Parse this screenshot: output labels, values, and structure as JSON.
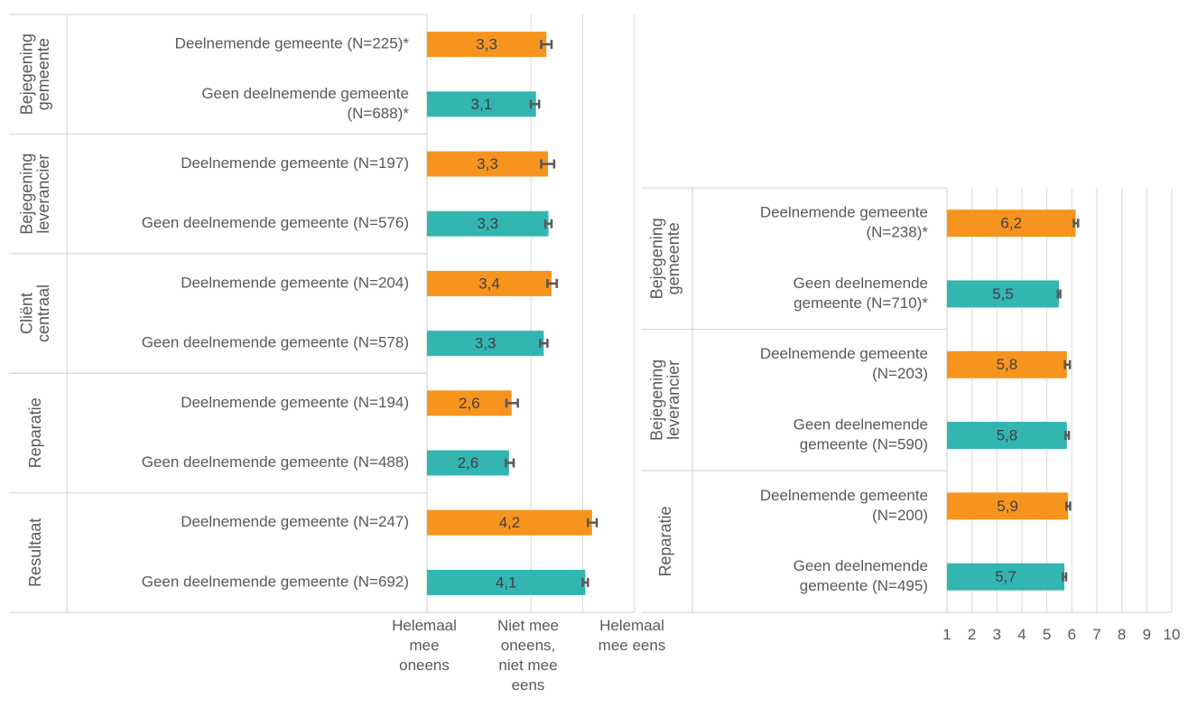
{
  "colors": {
    "participating": "#F7941D",
    "non_participating": "#33B5B2",
    "error_bar": "#595959",
    "grid": "#D9D9D9",
    "text": "#595959"
  },
  "chart_data": [
    {
      "type": "bar",
      "orientation": "horizontal",
      "xlim": [
        1,
        5
      ],
      "x_tick_labels": [
        "Helemaal mee oneens",
        "Niet mee oneens, niet mee eens",
        "Helemaal mee eens"
      ],
      "groups": [
        {
          "label": "Bejegening gemeente",
          "bars": [
            {
              "label": "Deelnemende gemeente (N=225)*",
              "value": 3.3,
              "value_label": "3,3",
              "error_low": 3.2,
              "error_high": 3.4,
              "series": "participating"
            },
            {
              "label": "Geen deelnemende gemeente (N=688)*",
              "value": 3.1,
              "value_label": "3,1",
              "error_low": 3.0,
              "error_high": 3.16,
              "series": "non_participating"
            }
          ]
        },
        {
          "label": "Bejegening leverancier",
          "bars": [
            {
              "label": "Deelnemende gemeente (N=197)",
              "value": 3.33,
              "value_label": "3,3",
              "error_low": 3.2,
              "error_high": 3.45,
              "series": "participating"
            },
            {
              "label": "Geen deelnemende gemeente (N=576)",
              "value": 3.34,
              "value_label": "3,3",
              "error_low": 3.28,
              "error_high": 3.4,
              "series": "non_participating"
            }
          ]
        },
        {
          "label": "Cliënt centraal",
          "bars": [
            {
              "label": "Deelnemende gemeente (N=204)",
              "value": 3.4,
              "value_label": "3,4",
              "error_low": 3.32,
              "error_high": 3.5,
              "series": "participating"
            },
            {
              "label": "Geen deelnemende gemeente (N=578)",
              "value": 3.25,
              "value_label": "3,3",
              "error_low": 3.18,
              "error_high": 3.32,
              "series": "non_participating"
            }
          ]
        },
        {
          "label": "Reparatie",
          "bars": [
            {
              "label": "Deelnemende gemeente (N=194)",
              "value": 2.63,
              "value_label": "2,6",
              "error_low": 2.53,
              "error_high": 2.75,
              "series": "participating"
            },
            {
              "label": "Geen deelnemende gemeente (N=488)",
              "value": 2.58,
              "value_label": "2,6",
              "error_low": 2.52,
              "error_high": 2.67,
              "series": "non_participating"
            }
          ]
        },
        {
          "label": "Resultaat",
          "bars": [
            {
              "label": "Deelnemende gemeente (N=247)",
              "value": 4.18,
              "value_label": "4,2",
              "error_low": 4.1,
              "error_high": 4.27,
              "series": "participating"
            },
            {
              "label": "Geen deelnemende gemeente (N=692)",
              "value": 4.05,
              "value_label": "4,1",
              "error_low": 4.0,
              "error_high": 4.1,
              "series": "non_participating"
            }
          ]
        }
      ]
    },
    {
      "type": "bar",
      "orientation": "horizontal",
      "xlim": [
        1,
        10
      ],
      "x_ticks": [
        1,
        2,
        3,
        4,
        5,
        6,
        7,
        8,
        9,
        10
      ],
      "x_tick_labels": [
        "1",
        "2",
        "3",
        "4",
        "5",
        "6",
        "7",
        "8",
        "9",
        "10"
      ],
      "grid": true,
      "groups": [
        {
          "label": "Bejegening gemeente",
          "bars": [
            {
              "label": "Deelnemende gemeente (N=238)*",
              "value": 6.15,
              "value_label": "6,2",
              "error_low": 6.08,
              "error_high": 6.25,
              "series": "participating"
            },
            {
              "label": "Geen deelnemende gemeente (N=710)*",
              "value": 5.48,
              "value_label": "5,5",
              "error_low": 5.44,
              "error_high": 5.54,
              "series": "non_participating"
            }
          ]
        },
        {
          "label": "Bejegening leverancier",
          "bars": [
            {
              "label": "Deelnemende gemeente (N=203)",
              "value": 5.8,
              "value_label": "5,8",
              "error_low": 5.72,
              "error_high": 5.92,
              "series": "participating"
            },
            {
              "label": "Geen deelnemende gemeente (N=590)",
              "value": 5.8,
              "value_label": "5,8",
              "error_low": 5.75,
              "error_high": 5.88,
              "series": "non_participating"
            }
          ]
        },
        {
          "label": "Reparatie",
          "bars": [
            {
              "label": "Deelnemende gemeente (N=200)",
              "value": 5.85,
              "value_label": "5,9",
              "error_low": 5.78,
              "error_high": 5.93,
              "series": "participating"
            },
            {
              "label": "Geen deelnemende gemeente (N=495)",
              "value": 5.7,
              "value_label": "5,7",
              "error_low": 5.64,
              "error_high": 5.77,
              "series": "non_participating"
            }
          ]
        }
      ]
    }
  ]
}
